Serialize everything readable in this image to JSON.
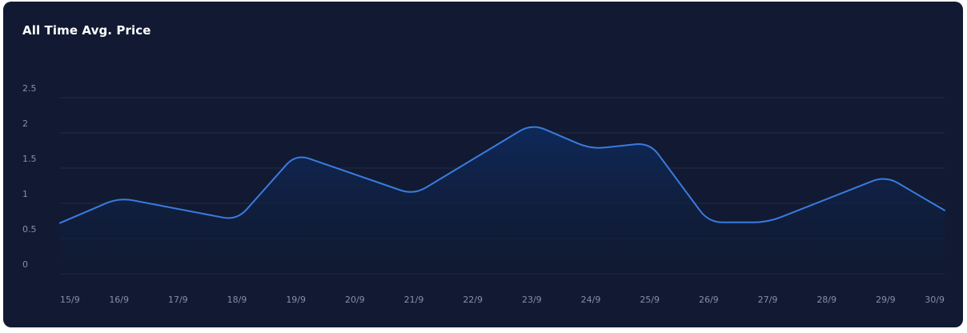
{
  "card": {
    "title": "All Time Avg. Price"
  },
  "colors": {
    "card_background": "#111a32",
    "grid": "#222c44",
    "line": "#3a7be0",
    "area_top": "#0e2a5c",
    "tick_text": "#8590a6",
    "title_text": "#ffffff"
  },
  "chart_data": {
    "type": "area",
    "title": "All Time Avg. Price",
    "xlabel": "",
    "ylabel": "",
    "categories": [
      "15/9",
      "16/9",
      "17/9",
      "18/9",
      "19/9",
      "20/9",
      "21/9",
      "22/9",
      "23/9",
      "24/9",
      "25/9",
      "26/9",
      "27/9",
      "28/9",
      "29/9",
      "30/9"
    ],
    "series": [
      {
        "values": [
          0.72,
          1.08,
          null,
          0.76,
          1.7,
          null,
          1.12,
          null,
          2.13,
          1.77,
          1.86,
          0.73,
          0.73,
          null,
          1.39,
          0.9
        ]
      }
    ],
    "y_ticks": [
      "0",
      "0.5",
      "1",
      "1.5",
      "2",
      "2.5"
    ],
    "ylim": [
      0,
      2.5
    ],
    "grid": true,
    "legend": "none",
    "smooth": true
  }
}
